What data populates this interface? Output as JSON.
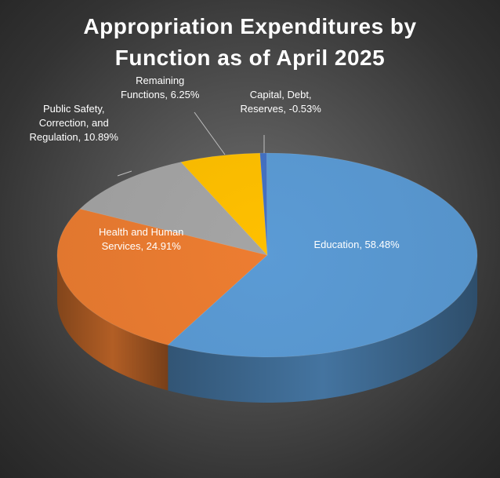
{
  "chart_data": {
    "type": "pie",
    "title_lines": [
      "Appropriation Expenditures by",
      "Function as of April 2025"
    ],
    "slices": [
      {
        "label_lines": [
          "Capital, Debt,",
          "Reserves, -0.53%"
        ],
        "value": -0.53,
        "color": "#4472c4"
      },
      {
        "label_lines": [
          "Education, 58.48%"
        ],
        "value": 58.48,
        "color": "#5b9bd5"
      },
      {
        "label_lines": [
          "Health and Human",
          "Services, 24.91%"
        ],
        "value": 24.91,
        "color": "#ed7d31"
      },
      {
        "label_lines": [
          "Public Safety,",
          "Correction, and",
          "Regulation, 10.89%"
        ],
        "value": 10.89,
        "color": "#a5a5a5"
      },
      {
        "label_lines": [
          "Remaining",
          "Functions, 6.25%"
        ],
        "value": 6.25,
        "color": "#ffc000"
      }
    ],
    "legend": "none"
  }
}
